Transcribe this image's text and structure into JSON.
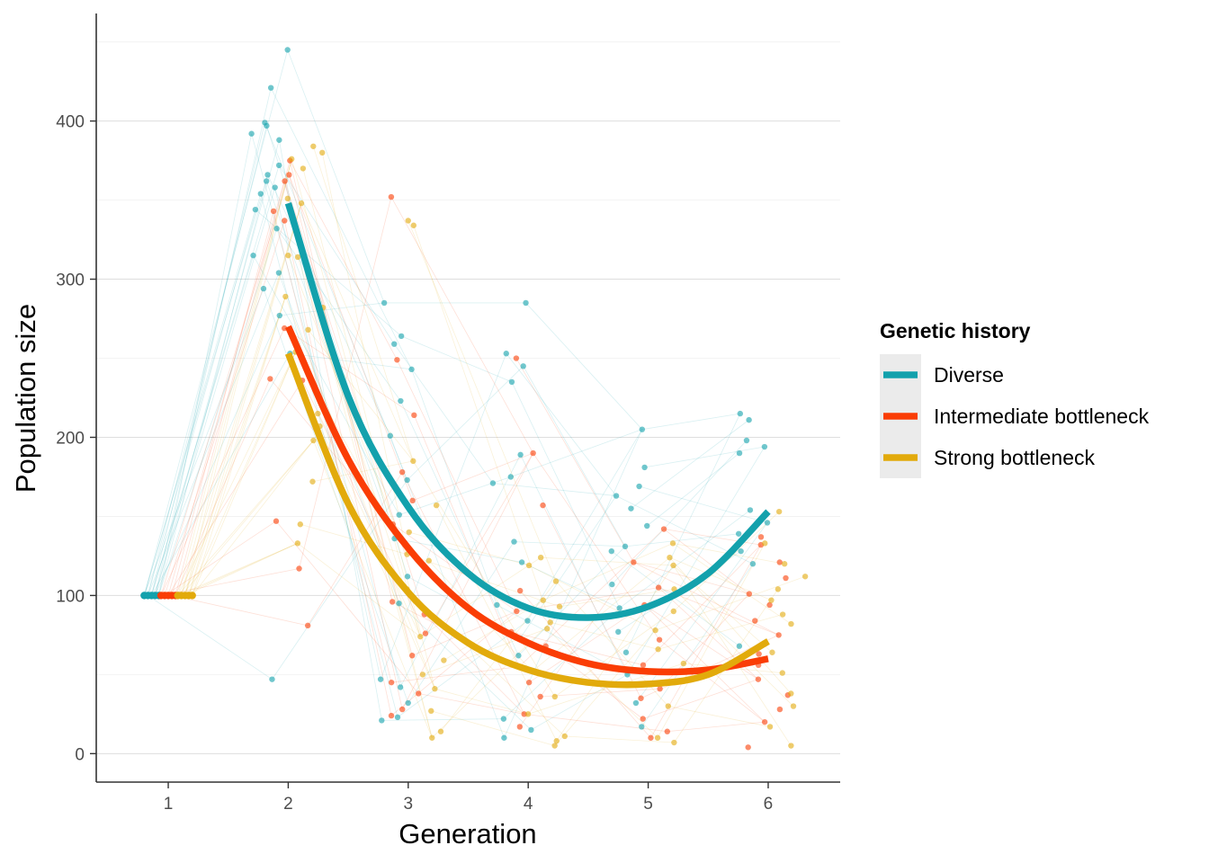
{
  "chart_data": {
    "type": "scatter",
    "xlabel": "Generation",
    "ylabel": "Population size",
    "xlim": [
      0.4,
      6.6
    ],
    "ylim": [
      -18,
      468
    ],
    "x_ticks": [
      1,
      2,
      3,
      4,
      5,
      6
    ],
    "y_ticks": [
      0,
      100,
      200,
      300,
      400
    ],
    "grid": "horizontal",
    "legend": {
      "title": "Genetic history",
      "placement": "right"
    },
    "series": [
      {
        "name": "Diverse",
        "color": "#13a1ac",
        "points": [
          [
            1,
            100
          ],
          [
            1,
            100
          ],
          [
            1,
            100
          ],
          [
            1,
            100
          ],
          [
            1,
            100
          ],
          [
            2,
            445
          ],
          [
            2,
            421
          ],
          [
            2,
            399
          ],
          [
            2,
            397
          ],
          [
            2,
            392
          ],
          [
            2,
            388
          ],
          [
            2,
            372
          ],
          [
            2,
            366
          ],
          [
            2,
            362
          ],
          [
            2,
            358
          ],
          [
            2,
            354
          ],
          [
            2,
            344
          ],
          [
            2,
            332
          ],
          [
            2,
            315
          ],
          [
            2,
            304
          ],
          [
            2,
            294
          ],
          [
            2,
            277
          ],
          [
            2,
            253
          ],
          [
            2,
            47
          ],
          [
            3,
            285
          ],
          [
            3,
            264
          ],
          [
            3,
            259
          ],
          [
            3,
            243
          ],
          [
            3,
            223
          ],
          [
            3,
            201
          ],
          [
            3,
            173
          ],
          [
            3,
            151
          ],
          [
            3,
            136
          ],
          [
            3,
            112
          ],
          [
            3,
            95
          ],
          [
            3,
            47
          ],
          [
            3,
            42
          ],
          [
            3,
            32
          ],
          [
            3,
            23
          ],
          [
            3,
            21
          ],
          [
            4,
            285
          ],
          [
            4,
            253
          ],
          [
            4,
            245
          ],
          [
            4,
            235
          ],
          [
            4,
            189
          ],
          [
            4,
            175
          ],
          [
            4,
            171
          ],
          [
            4,
            134
          ],
          [
            4,
            121
          ],
          [
            4,
            94
          ],
          [
            4,
            84
          ],
          [
            4,
            73
          ],
          [
            4,
            62
          ],
          [
            4,
            22
          ],
          [
            4,
            15
          ],
          [
            4,
            10
          ],
          [
            5,
            205
          ],
          [
            5,
            181
          ],
          [
            5,
            169
          ],
          [
            5,
            163
          ],
          [
            5,
            155
          ],
          [
            5,
            144
          ],
          [
            5,
            131
          ],
          [
            5,
            128
          ],
          [
            5,
            107
          ],
          [
            5,
            92
          ],
          [
            5,
            77
          ],
          [
            5,
            64
          ],
          [
            5,
            50
          ],
          [
            5,
            32
          ],
          [
            5,
            17
          ],
          [
            6,
            215
          ],
          [
            6,
            211
          ],
          [
            6,
            198
          ],
          [
            6,
            194
          ],
          [
            6,
            190
          ],
          [
            6,
            154
          ],
          [
            6,
            146
          ],
          [
            6,
            139
          ],
          [
            6,
            128
          ],
          [
            6,
            120
          ],
          [
            6,
            68
          ]
        ],
        "trend": [
          [
            2,
            348
          ],
          [
            2.5,
            226
          ],
          [
            3,
            156
          ],
          [
            3.5,
            114
          ],
          [
            4,
            92
          ],
          [
            4.5,
            86
          ],
          [
            5,
            93
          ],
          [
            5.5,
            114
          ],
          [
            6,
            153
          ]
        ]
      },
      {
        "name": "Intermediate bottleneck",
        "color": "#fa3d05",
        "points": [
          [
            1,
            100
          ],
          [
            1,
            100
          ],
          [
            1,
            100
          ],
          [
            1,
            100
          ],
          [
            1,
            100
          ],
          [
            2,
            375
          ],
          [
            2,
            366
          ],
          [
            2,
            362
          ],
          [
            2,
            343
          ],
          [
            2,
            337
          ],
          [
            2,
            269
          ],
          [
            2,
            237
          ],
          [
            2,
            236
          ],
          [
            2,
            147
          ],
          [
            2,
            117
          ],
          [
            2,
            81
          ],
          [
            3,
            352
          ],
          [
            3,
            249
          ],
          [
            3,
            214
          ],
          [
            3,
            178
          ],
          [
            3,
            160
          ],
          [
            3,
            145
          ],
          [
            3,
            96
          ],
          [
            3,
            88
          ],
          [
            3,
            76
          ],
          [
            3,
            62
          ],
          [
            3,
            45
          ],
          [
            3,
            38
          ],
          [
            3,
            28
          ],
          [
            3,
            24
          ],
          [
            4,
            250
          ],
          [
            4,
            190
          ],
          [
            4,
            157
          ],
          [
            4,
            103
          ],
          [
            4,
            90
          ],
          [
            4,
            77
          ],
          [
            4,
            68
          ],
          [
            4,
            55
          ],
          [
            4,
            45
          ],
          [
            4,
            36
          ],
          [
            4,
            25
          ],
          [
            4,
            17
          ],
          [
            5,
            142
          ],
          [
            5,
            121
          ],
          [
            5,
            105
          ],
          [
            5,
            94
          ],
          [
            5,
            72
          ],
          [
            5,
            56
          ],
          [
            5,
            41
          ],
          [
            5,
            35
          ],
          [
            5,
            22
          ],
          [
            5,
            14
          ],
          [
            5,
            10
          ],
          [
            6,
            137
          ],
          [
            6,
            132
          ],
          [
            6,
            121
          ],
          [
            6,
            111
          ],
          [
            6,
            101
          ],
          [
            6,
            94
          ],
          [
            6,
            84
          ],
          [
            6,
            75
          ],
          [
            6,
            63
          ],
          [
            6,
            56
          ],
          [
            6,
            47
          ],
          [
            6,
            37
          ],
          [
            6,
            28
          ],
          [
            6,
            20
          ],
          [
            6,
            4
          ]
        ],
        "trend": [
          [
            2,
            270
          ],
          [
            2.5,
            186
          ],
          [
            3,
            130
          ],
          [
            3.5,
            92
          ],
          [
            4,
            70
          ],
          [
            4.5,
            57
          ],
          [
            5,
            52
          ],
          [
            5.5,
            53
          ],
          [
            6,
            60
          ]
        ]
      },
      {
        "name": "Strong bottleneck",
        "color": "#e2aa0b",
        "points": [
          [
            1,
            100
          ],
          [
            1,
            100
          ],
          [
            1,
            100
          ],
          [
            1,
            100
          ],
          [
            1,
            100
          ],
          [
            2,
            384
          ],
          [
            2,
            380
          ],
          [
            2,
            376
          ],
          [
            2,
            370
          ],
          [
            2,
            351
          ],
          [
            2,
            348
          ],
          [
            2,
            315
          ],
          [
            2,
            314
          ],
          [
            2,
            289
          ],
          [
            2,
            282
          ],
          [
            2,
            268
          ],
          [
            2,
            254
          ],
          [
            2,
            215
          ],
          [
            2,
            207
          ],
          [
            2,
            198
          ],
          [
            2,
            172
          ],
          [
            2,
            145
          ],
          [
            2,
            133
          ],
          [
            3,
            337
          ],
          [
            3,
            334
          ],
          [
            3,
            185
          ],
          [
            3,
            157
          ],
          [
            3,
            140
          ],
          [
            3,
            126
          ],
          [
            3,
            122
          ],
          [
            3,
            104
          ],
          [
            3,
            74
          ],
          [
            3,
            59
          ],
          [
            3,
            50
          ],
          [
            3,
            41
          ],
          [
            3,
            27
          ],
          [
            3,
            14
          ],
          [
            3,
            10
          ],
          [
            4,
            124
          ],
          [
            4,
            119
          ],
          [
            4,
            109
          ],
          [
            4,
            97
          ],
          [
            4,
            93
          ],
          [
            4,
            83
          ],
          [
            4,
            79
          ],
          [
            4,
            52
          ],
          [
            4,
            36
          ],
          [
            4,
            25
          ],
          [
            4,
            11
          ],
          [
            4,
            8
          ],
          [
            4,
            5
          ],
          [
            5,
            133
          ],
          [
            5,
            124
          ],
          [
            5,
            119
          ],
          [
            5,
            104
          ],
          [
            5,
            90
          ],
          [
            5,
            78
          ],
          [
            5,
            66
          ],
          [
            5,
            57
          ],
          [
            5,
            30
          ],
          [
            5,
            10
          ],
          [
            5,
            7
          ],
          [
            6,
            153
          ],
          [
            6,
            133
          ],
          [
            6,
            120
          ],
          [
            6,
            112
          ],
          [
            6,
            104
          ],
          [
            6,
            97
          ],
          [
            6,
            88
          ],
          [
            6,
            82
          ],
          [
            6,
            64
          ],
          [
            6,
            51
          ],
          [
            6,
            38
          ],
          [
            6,
            30
          ],
          [
            6,
            17
          ],
          [
            6,
            5
          ]
        ],
        "trend": [
          [
            2,
            253
          ],
          [
            2.5,
            158
          ],
          [
            3,
            102
          ],
          [
            3.5,
            70
          ],
          [
            4,
            53
          ],
          [
            4.5,
            45
          ],
          [
            5,
            44
          ],
          [
            5.5,
            50
          ],
          [
            6,
            71
          ]
        ]
      }
    ]
  }
}
